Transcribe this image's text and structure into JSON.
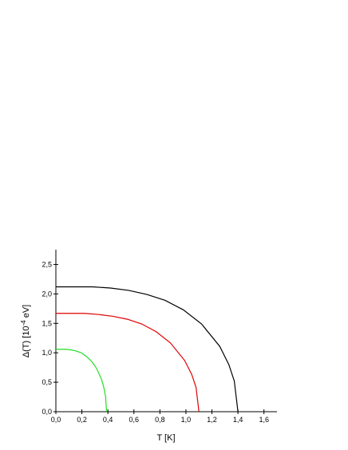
{
  "chart_data": {
    "type": "line",
    "xlabel": "T [K]",
    "ylabel": {
      "main": "Δ(T) [10",
      "sup": "-4",
      "unit": " eV]"
    },
    "xlim": [
      0,
      1.7
    ],
    "ylim": [
      0,
      2.75
    ],
    "xticks": [
      {
        "value": 0,
        "label": "0,0"
      },
      {
        "value": 0.2,
        "label": "0,2"
      },
      {
        "value": 0.4,
        "label": "0,4"
      },
      {
        "value": 0.6,
        "label": "0,6"
      },
      {
        "value": 0.8,
        "label": "0,8"
      },
      {
        "value": 1.0,
        "label": "1,0"
      },
      {
        "value": 1.2,
        "label": "1,2"
      },
      {
        "value": 1.4,
        "label": "1,4"
      },
      {
        "value": 1.6,
        "label": "1,6"
      }
    ],
    "yticks": [
      {
        "value": 0,
        "label": "0,0"
      },
      {
        "value": 0.5,
        "label": "0,5"
      },
      {
        "value": 1.0,
        "label": "1,0"
      },
      {
        "value": 1.5,
        "label": "1,5"
      },
      {
        "value": 2.0,
        "label": "2,0"
      },
      {
        "value": 2.5,
        "label": "2,5"
      }
    ],
    "grid": false,
    "series": [
      {
        "color": "#000000",
        "x": [
          0,
          0.28,
          0.42,
          0.56,
          0.7,
          0.84,
          0.98,
          1.12,
          1.26,
          1.33,
          1.372,
          1.4
        ],
        "values": [
          2.12,
          2.12,
          2.1,
          2.06,
          1.99,
          1.89,
          1.73,
          1.49,
          1.11,
          0.8,
          0.52,
          0
        ]
      },
      {
        "color": "#e00000",
        "x": [
          0,
          0.22,
          0.33,
          0.44,
          0.55,
          0.66,
          0.77,
          0.88,
          0.99,
          1.045,
          1.078,
          1.1
        ],
        "values": [
          1.67,
          1.67,
          1.65,
          1.62,
          1.57,
          1.49,
          1.36,
          1.17,
          0.87,
          0.63,
          0.41,
          0
        ]
      },
      {
        "color": "#22dd22",
        "x": [
          0,
          0.078,
          0.117,
          0.156,
          0.195,
          0.234,
          0.273,
          0.312,
          0.351,
          0.37,
          0.382,
          0.39
        ],
        "values": [
          1.06,
          1.06,
          1.05,
          1.03,
          1.0,
          0.94,
          0.86,
          0.74,
          0.55,
          0.4,
          0.26,
          0
        ]
      }
    ]
  }
}
